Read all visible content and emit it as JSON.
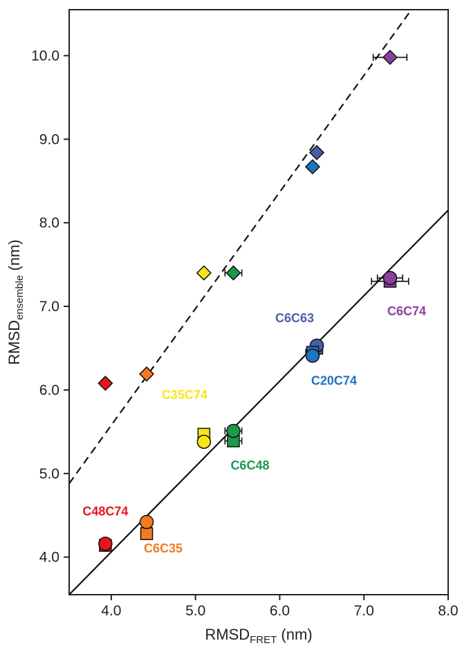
{
  "chart_data": {
    "type": "scatter",
    "title": "",
    "xlabel": {
      "main": "RMSD",
      "sub": "FRET",
      "unit": " (nm)"
    },
    "ylabel": {
      "main": "RMSD",
      "sub": "ensemble",
      "unit": " (nm)"
    },
    "xlim": [
      3.5,
      8.0
    ],
    "ylim": [
      3.55,
      10.55
    ],
    "xticks": [
      4.0,
      5.0,
      6.0,
      7.0,
      8.0
    ],
    "xtick_labels": [
      "4.0",
      "5.0",
      "6.0",
      "7.0",
      "8.0"
    ],
    "yticks": [
      4.0,
      5.0,
      6.0,
      7.0,
      8.0,
      9.0,
      10.0
    ],
    "ytick_labels": [
      "4.0",
      "5.0",
      "6.0",
      "7.0",
      "8.0",
      "9.0",
      "10.0"
    ],
    "grid": false,
    "fit_lines": [
      {
        "style": "dashed",
        "x": [
          3.5,
          7.6
        ],
        "y": [
          4.88,
          10.6
        ]
      },
      {
        "style": "solid",
        "x": [
          3.5,
          8.0
        ],
        "y": [
          3.55,
          8.15
        ]
      }
    ],
    "series": [
      {
        "label": "C48C74",
        "color": "#e8141c",
        "diamond": {
          "x": 3.93,
          "y": 6.08,
          "xerr": 0.05
        },
        "square": {
          "x": 3.93,
          "y": 4.14,
          "xerr": 0.05
        },
        "circle": {
          "x": 3.93,
          "y": 4.16,
          "xerr": 0.05
        }
      },
      {
        "label": "C6C35",
        "color": "#f47920",
        "diamond": {
          "x": 4.42,
          "y": 6.19,
          "xerr": 0.0
        },
        "square": {
          "x": 4.42,
          "y": 4.28,
          "xerr": 0.0
        },
        "circle": {
          "x": 4.42,
          "y": 4.42,
          "xerr": 0.0
        }
      },
      {
        "label": "C35C74",
        "color": "#f7e51a",
        "diamond": {
          "x": 5.1,
          "y": 7.4,
          "xerr": 0.0
        },
        "square": {
          "x": 5.1,
          "y": 5.47,
          "xerr": 0.0
        },
        "circle": {
          "x": 5.1,
          "y": 5.38,
          "xerr": 0.0
        }
      },
      {
        "label": "C6C48",
        "color": "#1a9a4a",
        "diamond": {
          "x": 5.45,
          "y": 7.4,
          "xerr": 0.1
        },
        "square": {
          "x": 5.45,
          "y": 5.39,
          "xerr": 0.1
        },
        "circle": {
          "x": 5.45,
          "y": 5.51,
          "xerr": 0.1
        }
      },
      {
        "label": "C6C63",
        "color": "#4a5ea8",
        "diamond": {
          "x": 6.44,
          "y": 8.84,
          "xerr": 0.04
        },
        "square": {
          "x": 6.44,
          "y": 6.5,
          "xerr": 0.04
        },
        "circle": {
          "x": 6.44,
          "y": 6.53,
          "xerr": 0.04
        }
      },
      {
        "label": "C20C74",
        "color": "#1f74c0",
        "diamond": {
          "x": 6.39,
          "y": 8.67,
          "xerr": 0.05
        },
        "square": {
          "x": 6.39,
          "y": 6.45,
          "xerr": 0.08
        },
        "circle": {
          "x": 6.39,
          "y": 6.41,
          "xerr": 0.05
        }
      },
      {
        "label": "C6C74",
        "color": "#8b3fa0",
        "diamond": {
          "x": 7.31,
          "y": 9.98,
          "xerr": 0.2
        },
        "square": {
          "x": 7.31,
          "y": 7.3,
          "xerr": 0.22
        },
        "circle": {
          "x": 7.31,
          "y": 7.34,
          "xerr": 0.15
        }
      }
    ]
  }
}
